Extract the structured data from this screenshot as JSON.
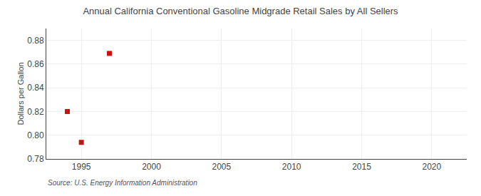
{
  "chart_data": {
    "type": "scatter",
    "title": "Annual California Conventional Gasoline Midgrade Retail Sales by All Sellers",
    "ylabel": "Dollars per Gallon",
    "annotations": [
      "Source: U.S. Energy Information Administration"
    ],
    "x": [
      1994,
      1995,
      1997
    ],
    "values": [
      0.82,
      0.794,
      0.869
    ],
    "color": "#cc1111",
    "marker": "square",
    "xlim": [
      1992.5,
      2022.5
    ],
    "ylim": [
      0.78,
      0.89
    ],
    "xticks": [
      1995,
      2000,
      2005,
      2010,
      2015,
      2020
    ],
    "yticks": [
      0.78,
      {
        "value": 0.8,
        "label": "0.80"
      },
      0.82,
      0.84,
      0.86,
      0.88
    ],
    "grid": true
  }
}
